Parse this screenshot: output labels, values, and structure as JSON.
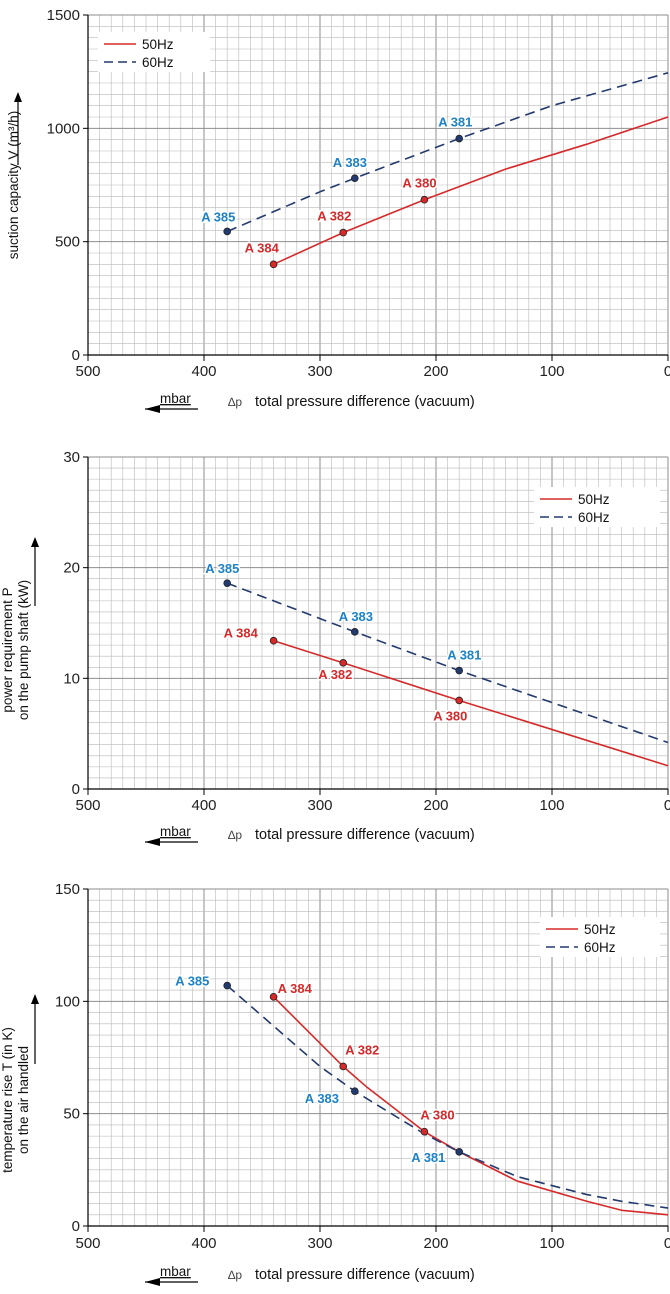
{
  "colors": {
    "s50": "#d62a2a",
    "s60": "#233a6e",
    "lbl60": "#1e82c6",
    "grid": "#b9b9b9",
    "axis": "#000000"
  },
  "chart_data": [
    {
      "type": "line",
      "ylabel": "suction capacity V (m³/h)",
      "xlabel": "total pressure difference (vacuum)",
      "xlabel_prefix": "∆p",
      "unit_label": "mbar",
      "xlim": [
        500,
        0
      ],
      "ylim": [
        0,
        1500
      ],
      "x_ticks": [
        "500",
        "400",
        "300",
        "200",
        "100",
        "0"
      ],
      "y_ticks": [
        "0",
        "500",
        "1000",
        "1500"
      ],
      "legend": [
        "50Hz",
        "60Hz"
      ],
      "series": [
        {
          "name": "50Hz",
          "x": [
            340,
            280,
            210,
            140,
            70,
            0
          ],
          "y": [
            400,
            540,
            685,
            820,
            930,
            1050
          ]
        },
        {
          "name": "60Hz",
          "x": [
            380,
            300,
            270,
            180,
            100,
            0
          ],
          "y": [
            545,
            720,
            780,
            955,
            1100,
            1245
          ]
        }
      ],
      "points": [
        {
          "label": "A 384",
          "series": "50Hz",
          "x": 340,
          "y": 400
        },
        {
          "label": "A 382",
          "series": "50Hz",
          "x": 280,
          "y": 540
        },
        {
          "label": "A 380",
          "series": "50Hz",
          "x": 210,
          "y": 685
        },
        {
          "label": "A 385",
          "series": "60Hz",
          "x": 380,
          "y": 545
        },
        {
          "label": "A 383",
          "series": "60Hz",
          "x": 270,
          "y": 780
        },
        {
          "label": "A 381",
          "series": "60Hz",
          "x": 180,
          "y": 955
        }
      ]
    },
    {
      "type": "line",
      "ylabel": "power requirement P\non the pump shaft (kW)",
      "xlabel": "total pressure difference (vacuum)",
      "xlabel_prefix": "∆p",
      "unit_label": "mbar",
      "xlim": [
        500,
        0
      ],
      "ylim": [
        0,
        30
      ],
      "x_ticks": [
        "500",
        "400",
        "300",
        "200",
        "100",
        "0"
      ],
      "y_ticks": [
        "0",
        "10",
        "20",
        "30"
      ],
      "legend": [
        "50Hz",
        "60Hz"
      ],
      "series": [
        {
          "name": "50Hz",
          "x": [
            340,
            280,
            180,
            0
          ],
          "y": [
            13.4,
            11.4,
            8.0,
            2.1
          ]
        },
        {
          "name": "60Hz",
          "x": [
            380,
            270,
            180,
            0
          ],
          "y": [
            18.6,
            14.2,
            10.7,
            4.2
          ]
        }
      ],
      "points": [
        {
          "label": "A 384",
          "series": "50Hz",
          "x": 340,
          "y": 13.4
        },
        {
          "label": "A 382",
          "series": "50Hz",
          "x": 280,
          "y": 11.4
        },
        {
          "label": "A 380",
          "series": "50Hz",
          "x": 180,
          "y": 8.0
        },
        {
          "label": "A 385",
          "series": "60Hz",
          "x": 380,
          "y": 18.6
        },
        {
          "label": "A 383",
          "series": "60Hz",
          "x": 270,
          "y": 14.2
        },
        {
          "label": "A 381",
          "series": "60Hz",
          "x": 180,
          "y": 10.7
        }
      ]
    },
    {
      "type": "line",
      "ylabel": "temperature rise T (in K)\non the air handled",
      "xlabel": "total pressure difference (vacuum)",
      "xlabel_prefix": "∆p",
      "unit_label": "mbar",
      "xlim": [
        500,
        0
      ],
      "ylim": [
        0,
        150
      ],
      "x_ticks": [
        "500",
        "400",
        "300",
        "200",
        "100",
        "0"
      ],
      "y_ticks": [
        "0",
        "50",
        "100",
        "150"
      ],
      "legend": [
        "50Hz",
        "60Hz"
      ],
      "series": [
        {
          "name": "50Hz",
          "x": [
            340,
            280,
            260,
            210,
            180,
            130,
            70,
            40,
            0
          ],
          "y": [
            102,
            71,
            62,
            42,
            33,
            20,
            11,
            7,
            5
          ]
        },
        {
          "name": "60Hz",
          "x": [
            380,
            300,
            270,
            210,
            180,
            130,
            70,
            40,
            0
          ],
          "y": [
            107,
            71,
            60,
            41,
            33,
            22,
            14,
            11,
            8
          ]
        }
      ],
      "points": [
        {
          "label": "A 384",
          "series": "50Hz",
          "x": 340,
          "y": 102
        },
        {
          "label": "A 382",
          "series": "50Hz",
          "x": 280,
          "y": 71
        },
        {
          "label": "A 380",
          "series": "50Hz",
          "x": 210,
          "y": 42
        },
        {
          "label": "A 385",
          "series": "60Hz",
          "x": 380,
          "y": 107
        },
        {
          "label": "A 383",
          "series": "60Hz",
          "x": 270,
          "y": 60
        },
        {
          "label": "A 381",
          "series": "60Hz",
          "x": 180,
          "y": 33
        }
      ]
    }
  ]
}
